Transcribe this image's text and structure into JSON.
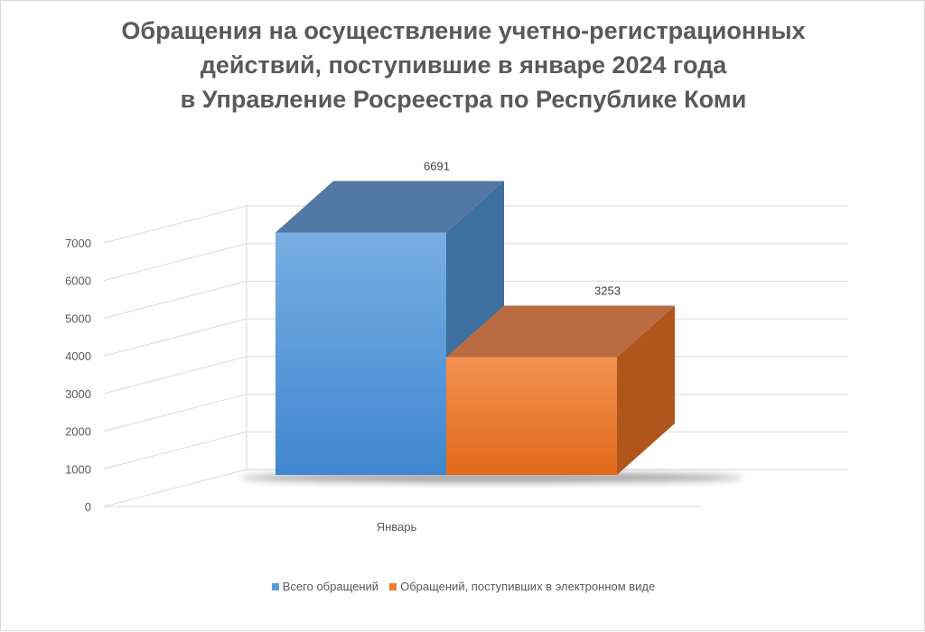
{
  "chart_data": {
    "type": "bar",
    "style": "3d-clustered-column",
    "title_lines": [
      "Обращения на осуществление учетно-регистрационных",
      "действий, поступившие в январе 2024 года",
      "в Управление Росреестра по Республике Коми"
    ],
    "categories": [
      "Январь"
    ],
    "series": [
      {
        "name": "Всего обращений",
        "values": [
          6691
        ],
        "color": "#5b9bd5"
      },
      {
        "name": "Обращений, поступивших в электронном виде",
        "values": [
          3253
        ],
        "color": "#ed7d31"
      }
    ],
    "y_ticks": [
      "0",
      "1000",
      "2000",
      "3000",
      "4000",
      "5000",
      "6000",
      "7000"
    ],
    "ylim": [
      0,
      7000
    ],
    "grid": true,
    "legend_position": "bottom"
  }
}
